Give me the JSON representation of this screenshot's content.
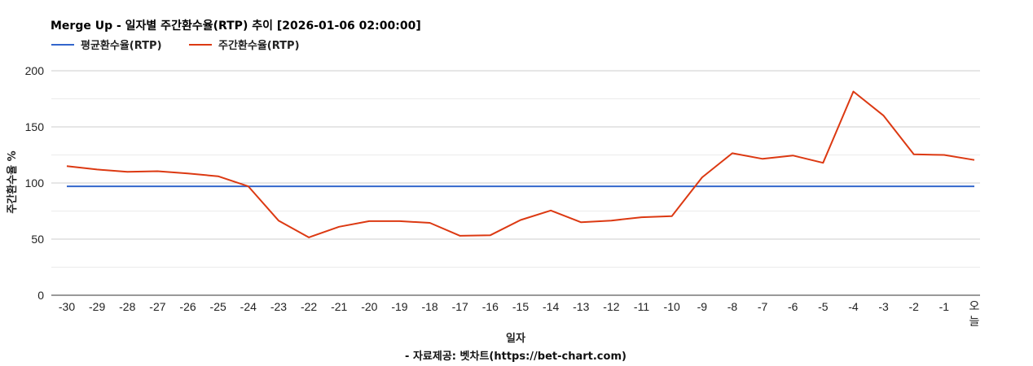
{
  "chart_data": {
    "type": "line",
    "title": "Merge Up - 일자별 주간환수율(RTP) 추이 [2026-01-06 02:00:00]",
    "xlabel": "일자",
    "ylabel": "주간환수율 %",
    "credit": "- 자료제공: 벳차트(https://bet-chart.com)",
    "ylim": [
      0,
      200
    ],
    "yticks": [
      0,
      50,
      100,
      150,
      200
    ],
    "grid": true,
    "legend_position": "top-left",
    "categories": [
      "-30",
      "-29",
      "-28",
      "-27",
      "-26",
      "-25",
      "-24",
      "-23",
      "-22",
      "-21",
      "-20",
      "-19",
      "-18",
      "-17",
      "-16",
      "-15",
      "-14",
      "-13",
      "-12",
      "-11",
      "-10",
      "-9",
      "-8",
      "-7",
      "-6",
      "-5",
      "-4",
      "-3",
      "-2",
      "-1",
      "오늘"
    ],
    "series": [
      {
        "name": "평균환수율(RTP)",
        "color": "#3366cc",
        "values": [
          97,
          97,
          97,
          97,
          97,
          97,
          97,
          97,
          97,
          97,
          97,
          97,
          97,
          97,
          97,
          97,
          97,
          97,
          97,
          97,
          97,
          97,
          97,
          97,
          97,
          97,
          97,
          97,
          97,
          97,
          97
        ]
      },
      {
        "name": "주간환수율(RTP)",
        "color": "#dc3912",
        "values": [
          115,
          112,
          110,
          110.5,
          108.5,
          106,
          97,
          66.5,
          51.5,
          61,
          66,
          66,
          64.5,
          53,
          53.5,
          67,
          75.5,
          65,
          66.5,
          69.5,
          70.5,
          105,
          126.5,
          121.5,
          124.5,
          118,
          181.5,
          160,
          125.5,
          125,
          120.5
        ]
      }
    ]
  }
}
